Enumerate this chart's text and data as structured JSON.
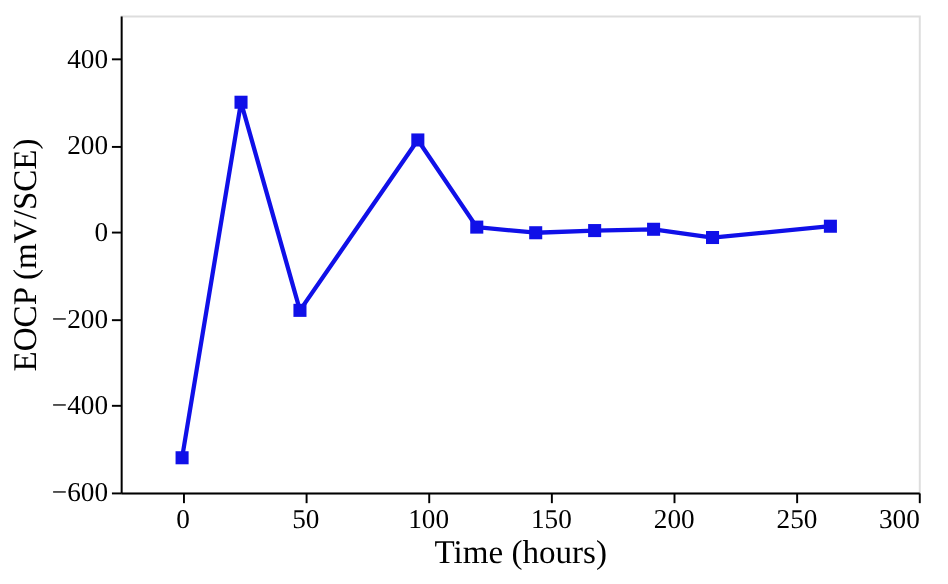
{
  "chart_data": {
    "type": "line",
    "xlabel": "Time (hours)",
    "ylabel": "EOCP (mV/SCE)",
    "x": [
      0,
      24,
      48,
      96,
      120,
      144,
      168,
      192,
      216,
      264
    ],
    "series": [
      {
        "color": "#1010e8",
        "values": [
          -520,
          300,
          -180,
          213,
          12,
          -1,
          4,
          7,
          -12,
          14
        ]
      }
    ],
    "xlim": [
      -25,
      300
    ],
    "xticks": [
      0,
      50,
      100,
      150,
      200,
      250,
      300
    ],
    "ylim": [
      -600,
      500
    ],
    "yticks": [
      -600,
      -400,
      -200,
      0,
      200,
      400
    ],
    "grid": false,
    "marker": "square",
    "line_style": "solid"
  }
}
